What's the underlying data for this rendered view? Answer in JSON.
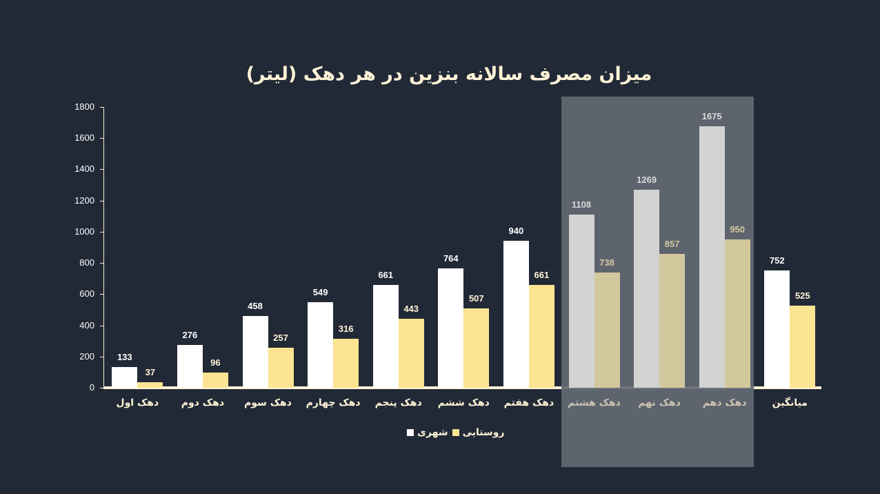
{
  "title": "میزان مصرف سالانه بنزین در هر دهک (لیتر)",
  "colors": {
    "background": "#222936",
    "urban": "#ffffff",
    "rural": "#fde493",
    "axis": "#fff3d6",
    "highlight_box": "#646973"
  },
  "legend": {
    "items": [
      {
        "label": "شهری",
        "color": "#ffffff"
      },
      {
        "label": "روستایی",
        "color": "#fde493"
      }
    ]
  },
  "highlight": {
    "categories": [
      "دهک هشتم",
      "دهک نهم",
      "دهک دهم"
    ]
  },
  "chart_data": {
    "type": "bar",
    "title": "میزان مصرف سالانه بنزین در هر دهک (لیتر)",
    "xlabel": "",
    "ylabel": "",
    "ylim": [
      0,
      1800
    ],
    "yticks": [
      0,
      200,
      400,
      600,
      800,
      1000,
      1200,
      1400,
      1600,
      1800
    ],
    "grid": false,
    "legend_position": "bottom",
    "categories": [
      "دهک اول",
      "دهک دوم",
      "دهک سوم",
      "دهک چهارم",
      "دهک پنجم",
      "دهک ششم",
      "دهک هفتم",
      "دهک هشتم",
      "دهک نهم",
      "دهک دهم",
      "میانگین"
    ],
    "series": [
      {
        "name": "شهری",
        "values": [
          133,
          276,
          458,
          549,
          661,
          764,
          940,
          1108,
          1269,
          1675,
          752
        ]
      },
      {
        "name": "روستایی",
        "values": [
          37,
          96,
          257,
          316,
          443,
          507,
          661,
          738,
          857,
          950,
          525
        ]
      }
    ],
    "annotations": [
      "Highlighted box over دهک هشتم, دهک نهم, دهک دهم"
    ]
  }
}
